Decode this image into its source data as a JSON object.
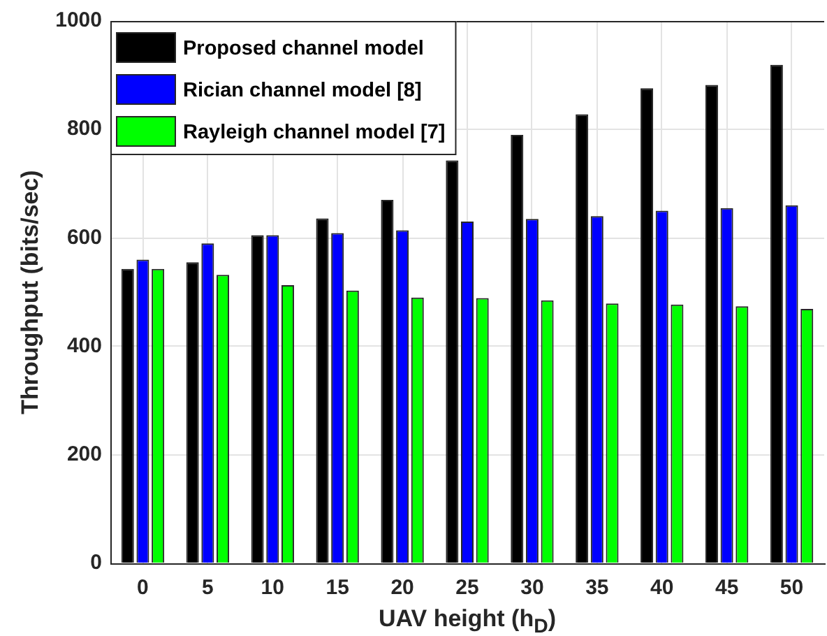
{
  "chart_data": {
    "type": "bar",
    "xlabel": "UAV height (h$_{D}$)",
    "ylabel": "Throughput (bits/sec)",
    "categories": [
      "0",
      "5",
      "10",
      "15",
      "20",
      "25",
      "30",
      "35",
      "40",
      "45",
      "50"
    ],
    "series": [
      {
        "name": "Proposed channel model",
        "color": "#000000",
        "values": [
          543,
          555,
          605,
          636,
          670,
          743,
          790,
          828,
          876,
          882,
          919
        ]
      },
      {
        "name": "Rician channel model [8]",
        "color": "#0000ff",
        "values": [
          560,
          590,
          605,
          609,
          614,
          630,
          635,
          640,
          650,
          655,
          660
        ]
      },
      {
        "name": "Rayleigh channel model [7]",
        "color": "#00ff00",
        "values": [
          543,
          532,
          513,
          503,
          490,
          489,
          485,
          479,
          477,
          474,
          469
        ]
      }
    ],
    "ylim": [
      0,
      1000
    ],
    "yticks": [
      0,
      200,
      400,
      600,
      800,
      1000
    ],
    "grid": true,
    "legend": "top left"
  }
}
